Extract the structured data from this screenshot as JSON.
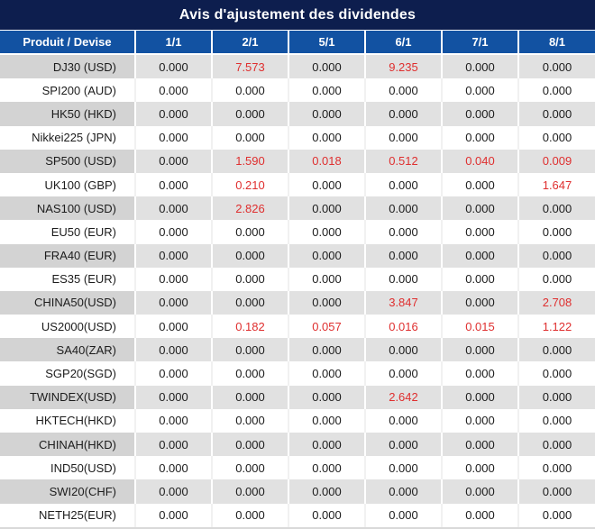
{
  "title": "Avis d'ajustement des dividendes",
  "colors": {
    "title_bg": "#0d1e4e",
    "header_bg": "#1252a2",
    "row_alt_gray_label": "#d3d3d3",
    "row_alt_gray_value": "#e1e1e1",
    "highlight_red": "#df2f2f",
    "text": "#1c1c1c"
  },
  "table": {
    "columns": [
      "Produit / Devise",
      "1/1",
      "2/1",
      "5/1",
      "6/1",
      "7/1",
      "8/1"
    ],
    "rows": [
      {
        "product": "DJ30 (USD)",
        "values": [
          "0.000",
          "7.573",
          "0.000",
          "9.235",
          "0.000",
          "0.000"
        ],
        "red": [
          1,
          3
        ]
      },
      {
        "product": "SPI200 (AUD)",
        "values": [
          "0.000",
          "0.000",
          "0.000",
          "0.000",
          "0.000",
          "0.000"
        ],
        "red": []
      },
      {
        "product": "HK50 (HKD)",
        "values": [
          "0.000",
          "0.000",
          "0.000",
          "0.000",
          "0.000",
          "0.000"
        ],
        "red": []
      },
      {
        "product": "Nikkei225 (JPN)",
        "values": [
          "0.000",
          "0.000",
          "0.000",
          "0.000",
          "0.000",
          "0.000"
        ],
        "red": []
      },
      {
        "product": "SP500 (USD)",
        "values": [
          "0.000",
          "1.590",
          "0.018",
          "0.512",
          "0.040",
          "0.009"
        ],
        "red": [
          1,
          2,
          3,
          4,
          5
        ]
      },
      {
        "product": "UK100 (GBP)",
        "values": [
          "0.000",
          "0.210",
          "0.000",
          "0.000",
          "0.000",
          "1.647"
        ],
        "red": [
          1,
          5
        ]
      },
      {
        "product": "NAS100 (USD)",
        "values": [
          "0.000",
          "2.826",
          "0.000",
          "0.000",
          "0.000",
          "0.000"
        ],
        "red": [
          1
        ]
      },
      {
        "product": "EU50 (EUR)",
        "values": [
          "0.000",
          "0.000",
          "0.000",
          "0.000",
          "0.000",
          "0.000"
        ],
        "red": []
      },
      {
        "product": "FRA40 (EUR)",
        "values": [
          "0.000",
          "0.000",
          "0.000",
          "0.000",
          "0.000",
          "0.000"
        ],
        "red": []
      },
      {
        "product": "ES35 (EUR)",
        "values": [
          "0.000",
          "0.000",
          "0.000",
          "0.000",
          "0.000",
          "0.000"
        ],
        "red": []
      },
      {
        "product": "CHINA50(USD)",
        "values": [
          "0.000",
          "0.000",
          "0.000",
          "3.847",
          "0.000",
          "2.708"
        ],
        "red": [
          3,
          5
        ]
      },
      {
        "product": "US2000(USD)",
        "values": [
          "0.000",
          "0.182",
          "0.057",
          "0.016",
          "0.015",
          "1.122"
        ],
        "red": [
          1,
          2,
          3,
          4,
          5
        ]
      },
      {
        "product": "SA40(ZAR)",
        "values": [
          "0.000",
          "0.000",
          "0.000",
          "0.000",
          "0.000",
          "0.000"
        ],
        "red": []
      },
      {
        "product": "SGP20(SGD)",
        "values": [
          "0.000",
          "0.000",
          "0.000",
          "0.000",
          "0.000",
          "0.000"
        ],
        "red": []
      },
      {
        "product": "TWINDEX(USD)",
        "values": [
          "0.000",
          "0.000",
          "0.000",
          "2.642",
          "0.000",
          "0.000"
        ],
        "red": [
          3
        ]
      },
      {
        "product": "HKTECH(HKD)",
        "values": [
          "0.000",
          "0.000",
          "0.000",
          "0.000",
          "0.000",
          "0.000"
        ],
        "red": []
      },
      {
        "product": "CHINAH(HKD)",
        "values": [
          "0.000",
          "0.000",
          "0.000",
          "0.000",
          "0.000",
          "0.000"
        ],
        "red": []
      },
      {
        "product": "IND50(USD)",
        "values": [
          "0.000",
          "0.000",
          "0.000",
          "0.000",
          "0.000",
          "0.000"
        ],
        "red": []
      },
      {
        "product": "SWI20(CHF)",
        "values": [
          "0.000",
          "0.000",
          "0.000",
          "0.000",
          "0.000",
          "0.000"
        ],
        "red": []
      },
      {
        "product": "NETH25(EUR)",
        "values": [
          "0.000",
          "0.000",
          "0.000",
          "0.000",
          "0.000",
          "0.000"
        ],
        "red": []
      }
    ]
  }
}
